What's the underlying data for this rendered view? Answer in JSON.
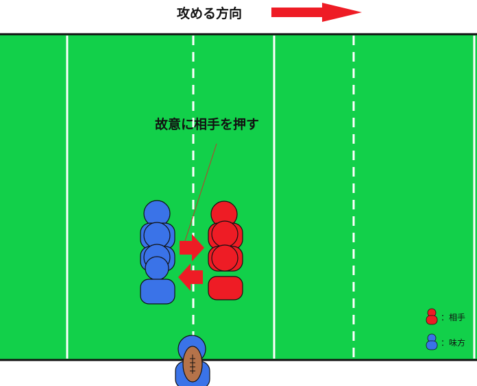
{
  "direction": {
    "label": "攻める方向"
  },
  "annotation": {
    "label": "故意に相手を押す"
  },
  "legend": {
    "opponent_label": "：相手",
    "teammate_label": "：味方"
  },
  "colors": {
    "field": "#12d04a",
    "line": "#ffffff",
    "border": "#111111",
    "opponent": "#ee1c25",
    "teammate": "#3a73e8",
    "ball": "#b5734a",
    "arrow": "#ee1c25"
  }
}
